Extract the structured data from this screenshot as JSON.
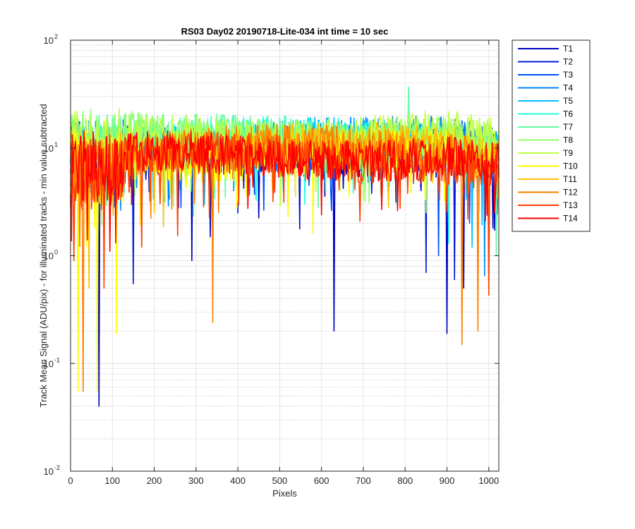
{
  "chart_data": {
    "type": "line",
    "title": "RS03 Day02 20190718-Lite-034 int time = 10 sec",
    "xlabel": "Pixels",
    "ylabel": "Track Mean Signal (ADU/pix) - for illuminated tracks - min value subtracted",
    "xlim": [
      0,
      1024
    ],
    "ylim": [
      0.01,
      100
    ],
    "yscale": "log",
    "grid": true,
    "minor_grid": true,
    "x_ticks": [
      "0",
      "100",
      "200",
      "300",
      "400",
      "500",
      "600",
      "700",
      "800",
      "900",
      "1000"
    ],
    "y_ticks": [
      {
        "base": "10",
        "exp": "-2"
      },
      {
        "base": "10",
        "exp": "-1"
      },
      {
        "base": "10",
        "exp": "0"
      },
      {
        "base": "10",
        "exp": "1"
      },
      {
        "base": "10",
        "exp": "2"
      }
    ],
    "legend_position": "outside-top-right",
    "series": [
      {
        "name": "T1",
        "color": "#0000c0",
        "level": 9.0,
        "dips": [
          [
            69,
            0.04
          ],
          [
            290,
            0.9
          ],
          [
            335,
            1.5
          ],
          [
            630,
            0.2
          ],
          [
            900,
            0.19
          ],
          [
            940,
            0.5
          ],
          [
            1010,
            1.8
          ]
        ]
      },
      {
        "name": "T2",
        "color": "#0018d8",
        "level": 9.5,
        "dips": [
          [
            150,
            0.55
          ],
          [
            400,
            2.5
          ],
          [
            850,
            0.7
          ],
          [
            918,
            0.6
          ]
        ]
      },
      {
        "name": "T3",
        "color": "#0050ff",
        "level": 10.5,
        "dips": [
          [
            265,
            2.8
          ],
          [
            880,
            1.0
          ],
          [
            955,
            2.0
          ]
        ]
      },
      {
        "name": "T4",
        "color": "#0088ff",
        "level": 11.5,
        "dips": [
          [
            520,
            3.2
          ],
          [
            990,
            0.65
          ]
        ]
      },
      {
        "name": "T5",
        "color": "#00c0ff",
        "level": 11.0,
        "dips": [
          [
            320,
            3.0
          ],
          [
            960,
            1.2
          ]
        ]
      },
      {
        "name": "T6",
        "color": "#20ffe0",
        "level": 11.5,
        "dips": [
          [
            560,
            3.0
          ],
          [
            905,
            1.3
          ]
        ]
      },
      {
        "name": "T7",
        "color": "#60ffa0",
        "level": 12.0,
        "dips": [
          [
            1018,
            1.0
          ]
        ],
        "spikes": [
          [
            808,
            37
          ]
        ]
      },
      {
        "name": "T8",
        "color": "#90ff70",
        "level": 12.5,
        "dips": [
          [
            850,
            2.5
          ]
        ]
      },
      {
        "name": "T9",
        "color": "#c0ff40",
        "level": 13.0,
        "dips": [
          [
            400,
            3.2
          ],
          [
            700,
            3.3
          ]
        ]
      },
      {
        "name": "T10",
        "color": "#ffff00",
        "level": 8.5,
        "dips": [
          [
            18,
            0.055
          ],
          [
            64,
            0.055
          ],
          [
            110,
            0.19
          ],
          [
            580,
            1.6
          ],
          [
            520,
            2.3
          ]
        ]
      },
      {
        "name": "T11",
        "color": "#ffc000",
        "level": 10.0,
        "dips": [
          [
            45,
            0.5
          ],
          [
            200,
            2.5
          ],
          [
            760,
            2.8
          ]
        ]
      },
      {
        "name": "T12",
        "color": "#ff8000",
        "level": 9.5,
        "dips": [
          [
            30,
            0.055
          ],
          [
            340,
            0.24
          ],
          [
            937,
            0.15
          ],
          [
            975,
            0.2
          ]
        ]
      },
      {
        "name": "T13",
        "color": "#ff4000",
        "level": 8.0,
        "dips": [
          [
            8,
            0.9
          ],
          [
            80,
            0.5
          ],
          [
            170,
            1.2
          ],
          [
            1000,
            0.43
          ]
        ]
      },
      {
        "name": "T14",
        "color": "#ff0000",
        "level": 8.5,
        "dips": [
          [
            40,
            1.4
          ],
          [
            95,
            1.1
          ],
          [
            600,
            2.4
          ],
          [
            1015,
            2.5
          ]
        ]
      }
    ]
  }
}
